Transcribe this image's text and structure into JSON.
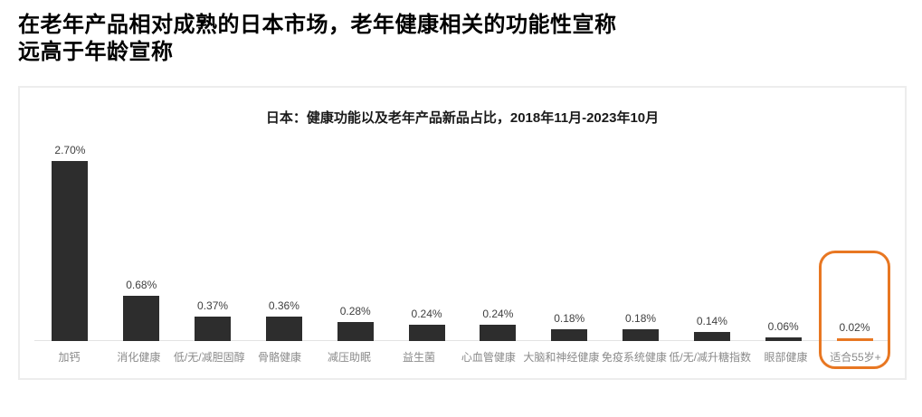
{
  "page_title": {
    "line1": "在老年产品相对成熟的日本市场，老年健康相关的功能性宣称",
    "line2": "远高于年龄宣称"
  },
  "chart_data": {
    "type": "bar",
    "title": "日本：健康功能以及老年产品新品占比，2018年11月-2023年10月",
    "xlabel": "",
    "ylabel": "",
    "unit": "%",
    "ylim": [
      0,
      3.0
    ],
    "grid": false,
    "legend": null,
    "categories": [
      "加钙",
      "消化健康",
      "低/无/减胆固醇",
      "骨骼健康",
      "减压助眠",
      "益生菌",
      "心血管健康",
      "大脑和神经健康",
      "免疫系统健康",
      "低/无/减升糖指数",
      "眼部健康",
      "适合55岁+"
    ],
    "values": [
      2.7,
      0.68,
      0.37,
      0.36,
      0.28,
      0.24,
      0.24,
      0.18,
      0.18,
      0.14,
      0.06,
      0.02
    ],
    "value_labels": [
      "2.70%",
      "0.68%",
      "0.37%",
      "0.36%",
      "0.28%",
      "0.24%",
      "0.24%",
      "0.18%",
      "0.18%",
      "0.14%",
      "0.06%",
      "0.02%"
    ],
    "highlight_index": 11,
    "highlight_category": "适合55岁+",
    "colors": {
      "bar": "#2d2d2d",
      "highlight": "#e87722",
      "axis": "#e3e3e3",
      "value_label": "#3f3f3f",
      "category_label": "#8a8a8a",
      "panel_border": "#ededed",
      "title_text": "#000000"
    }
  }
}
